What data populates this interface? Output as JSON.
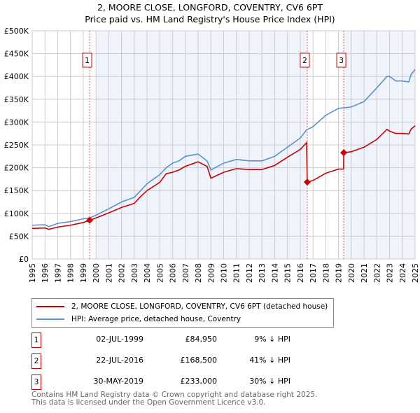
{
  "chart_data": {
    "type": "line",
    "title": "2, MOORE CLOSE, LONGFORD, COVENTRY, CV6 6PT",
    "subtitle": "Price paid vs. HM Land Registry's House Price Index (HPI)",
    "xlim": [
      1995,
      2025
    ],
    "ylim": [
      0,
      500000
    ],
    "x_ticks": [
      "1995",
      "1996",
      "1997",
      "1998",
      "1999",
      "2000",
      "2001",
      "2002",
      "2003",
      "2004",
      "2005",
      "2006",
      "2007",
      "2008",
      "2009",
      "2010",
      "2011",
      "2012",
      "2013",
      "2014",
      "2015",
      "2016",
      "2017",
      "2018",
      "2019",
      "2020",
      "2021",
      "2022",
      "2023",
      "2024",
      "2025"
    ],
    "y_ticks": [
      {
        "v": 0,
        "label": "£0"
      },
      {
        "v": 50000,
        "label": "£50K"
      },
      {
        "v": 100000,
        "label": "£100K"
      },
      {
        "v": 150000,
        "label": "£150K"
      },
      {
        "v": 200000,
        "label": "£200K"
      },
      {
        "v": 250000,
        "label": "£250K"
      },
      {
        "v": 300000,
        "label": "£300K"
      },
      {
        "v": 350000,
        "label": "£350K"
      },
      {
        "v": 400000,
        "label": "£400K"
      },
      {
        "v": 450000,
        "label": "£450K"
      },
      {
        "v": 500000,
        "label": "£500K"
      }
    ],
    "grid": true,
    "shaded_ranges": [
      [
        2000,
        2016.55
      ],
      [
        2019.41,
        2025
      ]
    ],
    "series": [
      {
        "name": "2, MOORE CLOSE, LONGFORD, COVENTRY, CV6 6PT (detached house)",
        "color": "#cc0000",
        "points": [
          [
            1995,
            67000
          ],
          [
            1996,
            68000
          ],
          [
            1996.3,
            65000
          ],
          [
            1997,
            70000
          ],
          [
            1998,
            74000
          ],
          [
            1999,
            80000
          ],
          [
            1999.5,
            84950
          ],
          [
            2000,
            90000
          ],
          [
            2001,
            101000
          ],
          [
            2002,
            113000
          ],
          [
            2003,
            122000
          ],
          [
            2003.5,
            137000
          ],
          [
            2004,
            150000
          ],
          [
            2005,
            168000
          ],
          [
            2005.5,
            187000
          ],
          [
            2006,
            190000
          ],
          [
            2006.5,
            195000
          ],
          [
            2007,
            203000
          ],
          [
            2008,
            213000
          ],
          [
            2008.7,
            203000
          ],
          [
            2009,
            177000
          ],
          [
            2010,
            190000
          ],
          [
            2011,
            198000
          ],
          [
            2012,
            196000
          ],
          [
            2013,
            196000
          ],
          [
            2014,
            205000
          ],
          [
            2015,
            223000
          ],
          [
            2016,
            240000
          ],
          [
            2016.5,
            255000
          ],
          [
            2016.55,
            168500
          ],
          [
            2017,
            172000
          ],
          [
            2018,
            188000
          ],
          [
            2019,
            197000
          ],
          [
            2019.4,
            197000
          ],
          [
            2019.41,
            233000
          ],
          [
            2020,
            235000
          ],
          [
            2021,
            245000
          ],
          [
            2022,
            262000
          ],
          [
            2022.8,
            284000
          ],
          [
            2023,
            280000
          ],
          [
            2023.5,
            275000
          ],
          [
            2024,
            275000
          ],
          [
            2024.5,
            274000
          ],
          [
            2024.7,
            285000
          ],
          [
            2025,
            292000
          ]
        ]
      },
      {
        "name": "HPI: Average price, detached house, Coventry",
        "color": "#5b8fd0",
        "points": [
          [
            1995,
            74000
          ],
          [
            1996,
            75000
          ],
          [
            1996.3,
            71000
          ],
          [
            1997,
            78000
          ],
          [
            1998,
            82000
          ],
          [
            1999,
            88000
          ],
          [
            1999.5,
            90000
          ],
          [
            2000,
            96000
          ],
          [
            2001,
            110000
          ],
          [
            2002,
            125000
          ],
          [
            2003,
            135000
          ],
          [
            2003.5,
            150000
          ],
          [
            2004,
            165000
          ],
          [
            2005,
            185000
          ],
          [
            2005.5,
            200000
          ],
          [
            2006,
            210000
          ],
          [
            2006.5,
            215000
          ],
          [
            2007,
            225000
          ],
          [
            2008,
            230000
          ],
          [
            2008.7,
            215000
          ],
          [
            2009,
            195000
          ],
          [
            2010,
            210000
          ],
          [
            2011,
            218000
          ],
          [
            2012,
            215000
          ],
          [
            2013,
            215000
          ],
          [
            2014,
            225000
          ],
          [
            2015,
            245000
          ],
          [
            2016,
            265000
          ],
          [
            2016.5,
            283000
          ],
          [
            2017,
            290000
          ],
          [
            2018,
            315000
          ],
          [
            2019,
            330000
          ],
          [
            2020,
            333000
          ],
          [
            2021,
            345000
          ],
          [
            2022,
            375000
          ],
          [
            2022.8,
            400000
          ],
          [
            2023,
            400000
          ],
          [
            2023.5,
            390000
          ],
          [
            2024,
            390000
          ],
          [
            2024.5,
            388000
          ],
          [
            2024.7,
            405000
          ],
          [
            2025,
            415000
          ]
        ]
      }
    ],
    "sales": [
      {
        "n": "1",
        "x": 1999.5,
        "y": 84950,
        "date": "02-JUL-1999",
        "price": "£84,950",
        "hpi": "9% ↓ HPI"
      },
      {
        "n": "2",
        "x": 2016.55,
        "y": 168500,
        "date": "22-JUL-2016",
        "price": "£168,500",
        "hpi": "41% ↓ HPI"
      },
      {
        "n": "3",
        "x": 2019.41,
        "y": 233000,
        "date": "30-MAY-2019",
        "price": "£233,000",
        "hpi": "30% ↓ HPI"
      }
    ]
  },
  "footer": [
    "Contains HM Land Registry data © Crown copyright and database right 2025.",
    "This data is licensed under the Open Government Licence v3.0."
  ]
}
